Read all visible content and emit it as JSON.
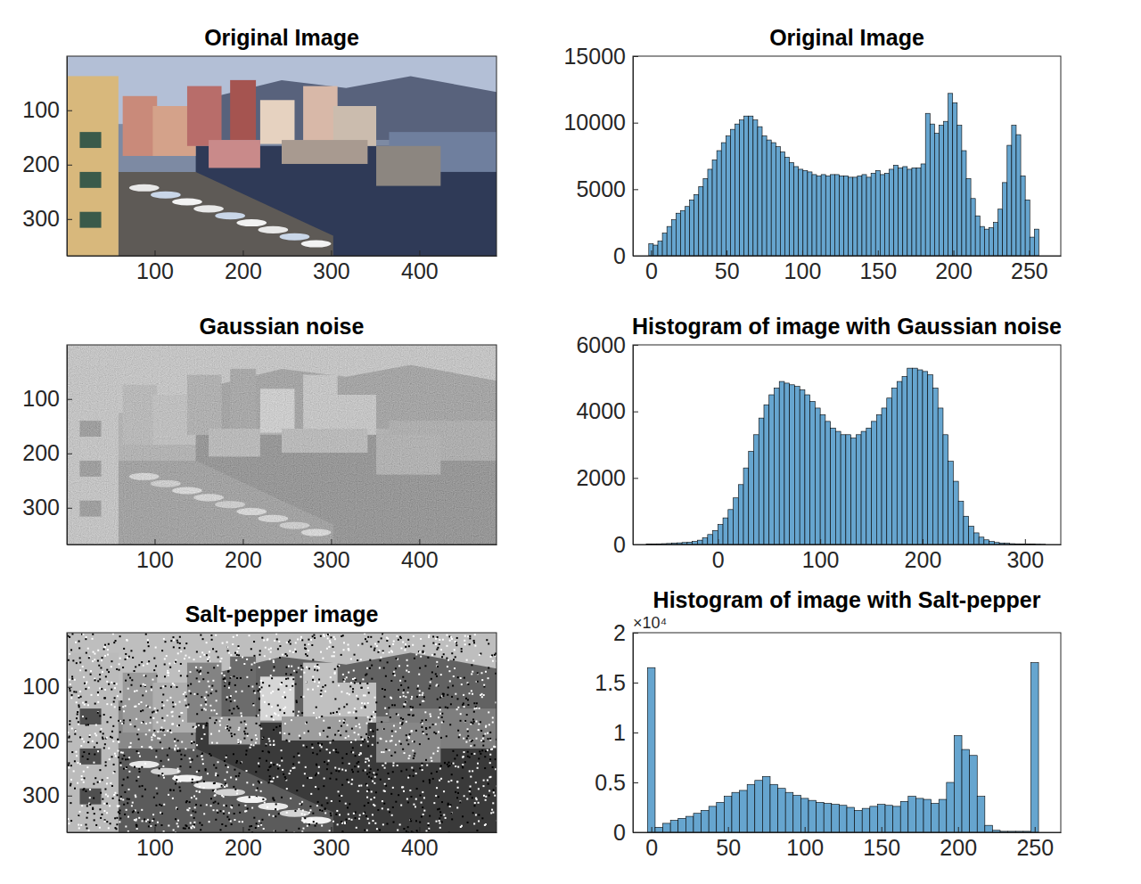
{
  "chart_data": [
    {
      "type": "image",
      "title": "Original Image",
      "xlim": [
        0.5,
        487.5
      ],
      "ylim": [
        0.5,
        367.5
      ],
      "xticks": [
        100,
        200,
        300,
        400
      ],
      "yticks": [
        100,
        200,
        300
      ]
    },
    {
      "type": "histogram",
      "title": "Original Image",
      "color": "#66a5cf",
      "xlim": [
        -12,
        271
      ],
      "ylim": [
        0,
        15000
      ],
      "xticks": [
        0,
        50,
        100,
        150,
        200,
        250
      ],
      "yticks": [
        0,
        5000,
        10000,
        15000
      ],
      "bins": [
        -1.5,
        1.5,
        4.5,
        7.5,
        10.5,
        13.5,
        16.5,
        19.5,
        22.5,
        25.5,
        28.5,
        31.5,
        34.5,
        37.5,
        40.5,
        43.5,
        46.5,
        49.5,
        52.5,
        55.5,
        58.5,
        61.5,
        64.5,
        67.5,
        70.5,
        73.5,
        76.5,
        79.5,
        82.5,
        85.5,
        88.5,
        91.5,
        94.5,
        97.5,
        100.5,
        103.5,
        106.5,
        109.5,
        112.5,
        115.5,
        118.5,
        121.5,
        124.5,
        127.5,
        130.5,
        133.5,
        136.5,
        139.5,
        142.5,
        145.5,
        148.5,
        151.5,
        154.5,
        157.5,
        160.5,
        163.5,
        166.5,
        169.5,
        172.5,
        175.5,
        178.5,
        181.5,
        184.5,
        187.5,
        190.5,
        193.5,
        196.5,
        199.5,
        202.5,
        205.5,
        208.5,
        211.5,
        214.5,
        217.5,
        220.5,
        223.5,
        226.5,
        229.5,
        232.5,
        235.5,
        238.5,
        241.5,
        244.5,
        247.5,
        250.5,
        253.5,
        256.5
      ],
      "counts": [
        900,
        800,
        1100,
        1700,
        2200,
        2700,
        3200,
        3400,
        3700,
        4200,
        4600,
        5200,
        5800,
        6500,
        7200,
        7900,
        8500,
        9000,
        9500,
        9900,
        10200,
        10500,
        10500,
        10200,
        9700,
        9000,
        8700,
        8500,
        8200,
        7800,
        7400,
        7000,
        6700,
        6500,
        6400,
        6300,
        6100,
        6000,
        6100,
        6000,
        6100,
        6100,
        6000,
        6000,
        5900,
        5900,
        6000,
        6100,
        5900,
        6200,
        6400,
        6100,
        6200,
        6500,
        6800,
        6600,
        6700,
        6500,
        6600,
        6600,
        6900,
        10700,
        9900,
        9200,
        9800,
        10100,
        12200,
        11500,
        9800,
        7900,
        5800,
        4300,
        3000,
        2200,
        2000,
        2100,
        2500,
        3500,
        5500,
        8300,
        9800,
        9100,
        6000,
        4200,
        1400,
        2000
      ]
    },
    {
      "type": "image",
      "title": "Gaussian noise",
      "xlim": [
        0.5,
        487.5
      ],
      "ylim": [
        0.5,
        367.5
      ],
      "xticks": [
        100,
        200,
        300,
        400
      ],
      "yticks": [
        100,
        200,
        300
      ]
    },
    {
      "type": "histogram",
      "title": "Histogram of image with Gaussian noise",
      "color": "#66a5cf",
      "xlim": [
        -83,
        335
      ],
      "ylim": [
        0,
        6000
      ],
      "xticks": [
        0,
        100,
        200,
        300
      ],
      "yticks": [
        0,
        2000,
        4000,
        6000
      ],
      "bins": [
        -70,
        -65,
        -60,
        -55,
        -50,
        -45,
        -40,
        -35,
        -30,
        -25,
        -20,
        -15,
        -10,
        -5,
        0,
        5,
        10,
        15,
        20,
        25,
        30,
        35,
        40,
        45,
        50,
        55,
        60,
        65,
        70,
        75,
        80,
        85,
        90,
        95,
        100,
        105,
        110,
        115,
        120,
        125,
        130,
        135,
        140,
        145,
        150,
        155,
        160,
        165,
        170,
        175,
        180,
        185,
        190,
        195,
        200,
        205,
        210,
        215,
        220,
        225,
        230,
        235,
        240,
        245,
        250,
        255,
        260,
        265,
        270,
        275,
        280,
        285,
        290,
        295,
        300,
        305,
        310,
        315,
        320
      ],
      "counts": [
        10,
        15,
        20,
        25,
        30,
        40,
        50,
        60,
        70,
        90,
        130,
        200,
        300,
        420,
        600,
        800,
        1050,
        1400,
        1800,
        2300,
        2800,
        3300,
        3800,
        4200,
        4500,
        4700,
        4900,
        4850,
        4800,
        4750,
        4650,
        4500,
        4300,
        4100,
        3900,
        3700,
        3500,
        3400,
        3300,
        3300,
        3200,
        3300,
        3400,
        3500,
        3700,
        3900,
        4100,
        4400,
        4700,
        4900,
        5050,
        5300,
        5300,
        5250,
        5200,
        5100,
        4700,
        4100,
        3300,
        2500,
        1900,
        1300,
        850,
        550,
        350,
        220,
        140,
        90,
        60,
        45,
        35,
        25,
        20,
        15,
        12,
        10,
        8,
        5
      ]
    },
    {
      "type": "image",
      "title": "Salt-pepper image",
      "xlim": [
        0.5,
        487.5
      ],
      "ylim": [
        0.5,
        367.5
      ],
      "xticks": [
        100,
        200,
        300,
        400
      ],
      "yticks": [
        100,
        200,
        300
      ]
    },
    {
      "type": "histogram",
      "title": "Histogram of image with Salt-pepper",
      "y_exponent": "×10⁴",
      "color": "#66a5cf",
      "xlim": [
        -12,
        267
      ],
      "ylim": [
        0,
        2
      ],
      "xticks": [
        0,
        50,
        100,
        150,
        200,
        250
      ],
      "yticks": [
        0,
        0.5,
        1,
        1.5,
        2
      ],
      "bins": [
        -2.5,
        2.5,
        7.5,
        12.5,
        17.5,
        22.5,
        27.5,
        32.5,
        37.5,
        42.5,
        47.5,
        52.5,
        57.5,
        62.5,
        67.5,
        72.5,
        77.5,
        82.5,
        87.5,
        92.5,
        97.5,
        102.5,
        107.5,
        112.5,
        117.5,
        122.5,
        127.5,
        132.5,
        137.5,
        142.5,
        147.5,
        152.5,
        157.5,
        162.5,
        167.5,
        172.5,
        177.5,
        182.5,
        187.5,
        192.5,
        197.5,
        202.5,
        207.5,
        212.5,
        217.5,
        222.5,
        227.5,
        232.5,
        237.5,
        242.5,
        247.5,
        252.5
      ],
      "counts": [
        1.65,
        0.05,
        0.09,
        0.12,
        0.14,
        0.16,
        0.19,
        0.22,
        0.26,
        0.3,
        0.36,
        0.4,
        0.42,
        0.48,
        0.52,
        0.56,
        0.48,
        0.44,
        0.4,
        0.37,
        0.34,
        0.32,
        0.3,
        0.29,
        0.28,
        0.27,
        0.25,
        0.22,
        0.24,
        0.26,
        0.28,
        0.27,
        0.26,
        0.31,
        0.36,
        0.34,
        0.33,
        0.29,
        0.33,
        0.5,
        0.97,
        0.83,
        0.77,
        0.36,
        0.07,
        0.02,
        0.01,
        0.01,
        0.01,
        0.01,
        1.7
      ]
    }
  ]
}
